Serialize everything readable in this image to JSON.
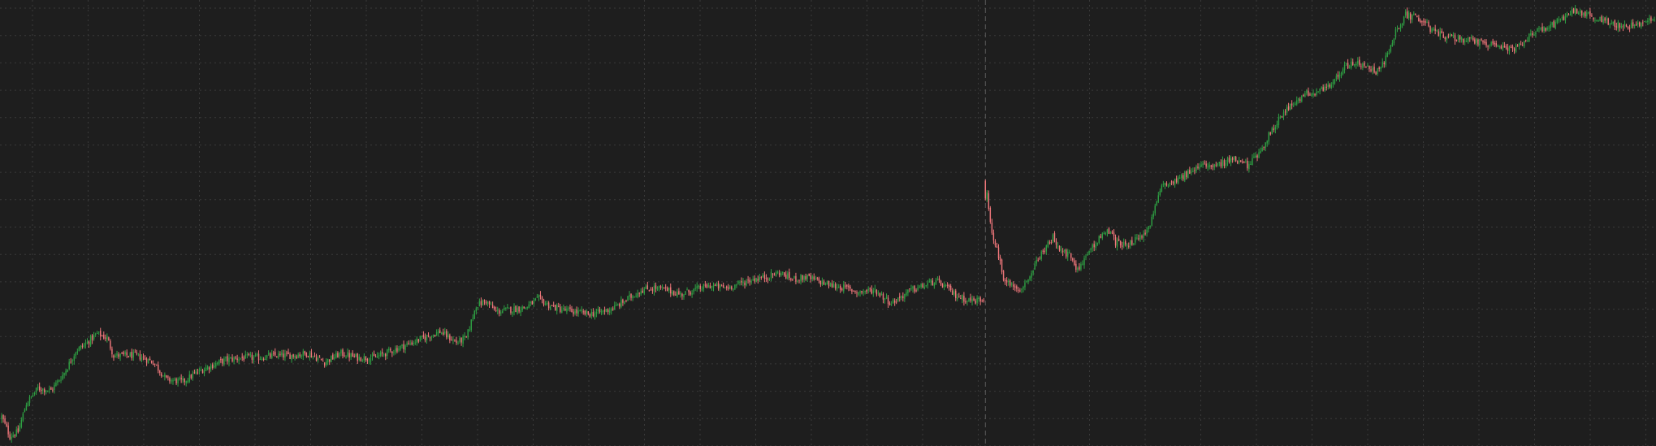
{
  "colors": {
    "background": "#1e1e1e",
    "grid": "#3a3a3a",
    "up": "#2ea043",
    "down": "#f0777b",
    "crosshair": "#5a5a5a"
  },
  "chart_data": {
    "type": "candlestick",
    "grid": true,
    "grid_style": "dotted",
    "crosshair": true,
    "axis_labels_visible": false,
    "ylim": [
      0,
      100
    ],
    "series": [
      {
        "trend": [
          [
            0,
            6
          ],
          [
            5,
            1.5
          ],
          [
            10,
            2.5
          ],
          [
            15,
            9
          ],
          [
            22,
            12.5
          ],
          [
            30,
            12
          ],
          [
            38,
            16
          ],
          [
            45,
            21
          ],
          [
            52,
            23
          ],
          [
            58,
            25
          ],
          [
            64,
            24
          ],
          [
            68,
            20
          ],
          [
            74,
            20
          ],
          [
            82,
            20
          ],
          [
            92,
            18.5
          ],
          [
            100,
            14.5
          ],
          [
            110,
            14
          ],
          [
            118,
            16
          ],
          [
            126,
            17.5
          ],
          [
            136,
            19
          ],
          [
            146,
            19.5
          ],
          [
            156,
            19.5
          ],
          [
            166,
            20
          ],
          [
            176,
            20
          ],
          [
            186,
            20.5
          ],
          [
            196,
            18.5
          ],
          [
            206,
            20.5
          ],
          [
            216,
            19.5
          ],
          [
            226,
            19.5
          ],
          [
            236,
            21
          ],
          [
            246,
            22.5
          ],
          [
            256,
            24
          ],
          [
            266,
            25.5
          ],
          [
            276,
            23
          ],
          [
            282,
            24
          ],
          [
            288,
            31.5
          ],
          [
            294,
            32.5
          ],
          [
            300,
            30
          ],
          [
            308,
            30.5
          ],
          [
            318,
            31
          ],
          [
            326,
            33
          ],
          [
            332,
            31.5
          ],
          [
            340,
            30.5
          ],
          [
            348,
            30
          ],
          [
            356,
            29.5
          ],
          [
            364,
            30
          ],
          [
            372,
            31
          ],
          [
            380,
            33
          ],
          [
            388,
            35
          ],
          [
            396,
            35.5
          ],
          [
            404,
            35
          ],
          [
            412,
            34
          ],
          [
            420,
            35
          ],
          [
            430,
            36
          ],
          [
            440,
            35.5
          ],
          [
            448,
            36.5
          ],
          [
            456,
            37.5
          ],
          [
            464,
            38
          ],
          [
            472,
            39
          ],
          [
            480,
            37.5
          ],
          [
            488,
            38
          ],
          [
            496,
            37
          ],
          [
            504,
            36
          ],
          [
            512,
            35.5
          ],
          [
            520,
            34.5
          ],
          [
            530,
            35
          ],
          [
            540,
            32
          ],
          [
            546,
            33.5
          ],
          [
            552,
            35
          ],
          [
            560,
            36
          ],
          [
            566,
            37
          ],
          [
            572,
            36
          ],
          [
            578,
            34
          ],
          [
            584,
            33
          ],
          [
            590,
            32.5
          ],
          [
            596,
            33
          ],
          [
            597,
            60
          ],
          [
            600,
            50
          ],
          [
            604,
            44
          ],
          [
            608,
            38
          ],
          [
            612,
            36
          ],
          [
            618,
            35.5
          ],
          [
            622,
            37
          ],
          [
            626,
            40
          ],
          [
            632,
            44
          ],
          [
            638,
            47
          ],
          [
            642,
            44
          ],
          [
            648,
            43
          ],
          [
            652,
            40
          ],
          [
            656,
            41
          ],
          [
            660,
            44
          ],
          [
            666,
            47
          ],
          [
            672,
            48.5
          ],
          [
            676,
            46
          ],
          [
            680,
            45.5
          ],
          [
            686,
            46
          ],
          [
            692,
            47
          ],
          [
            698,
            51
          ],
          [
            704,
            59
          ],
          [
            710,
            60
          ],
          [
            716,
            61
          ],
          [
            722,
            62
          ],
          [
            730,
            64
          ],
          [
            740,
            64
          ],
          [
            748,
            65
          ],
          [
            756,
            63.5
          ],
          [
            762,
            66
          ],
          [
            770,
            71
          ],
          [
            778,
            76
          ],
          [
            786,
            78
          ],
          [
            792,
            80
          ],
          [
            798,
            80.5
          ],
          [
            804,
            81
          ],
          [
            810,
            84
          ],
          [
            816,
            86.5
          ],
          [
            822,
            87
          ],
          [
            828,
            86
          ],
          [
            834,
            85
          ],
          [
            840,
            88
          ],
          [
            846,
            94
          ],
          [
            852,
            98
          ],
          [
            858,
            97.5
          ],
          [
            864,
            96
          ],
          [
            870,
            94
          ],
          [
            878,
            93
          ],
          [
            886,
            92.5
          ],
          [
            894,
            92
          ],
          [
            902,
            91.5
          ],
          [
            910,
            90.5
          ],
          [
            918,
            90
          ],
          [
            924,
            92
          ],
          [
            930,
            94
          ],
          [
            936,
            95
          ],
          [
            942,
            96
          ],
          [
            948,
            97.5
          ],
          [
            954,
            99
          ],
          [
            960,
            98.5
          ],
          [
            966,
            97.5
          ],
          [
            972,
            96.5
          ],
          [
            980,
            96
          ],
          [
            988,
            95.5
          ],
          [
            996,
            96
          ],
          [
            1003,
            97
          ]
        ],
        "spike_index": 597,
        "crosshair_at_index": 597
      }
    ]
  }
}
